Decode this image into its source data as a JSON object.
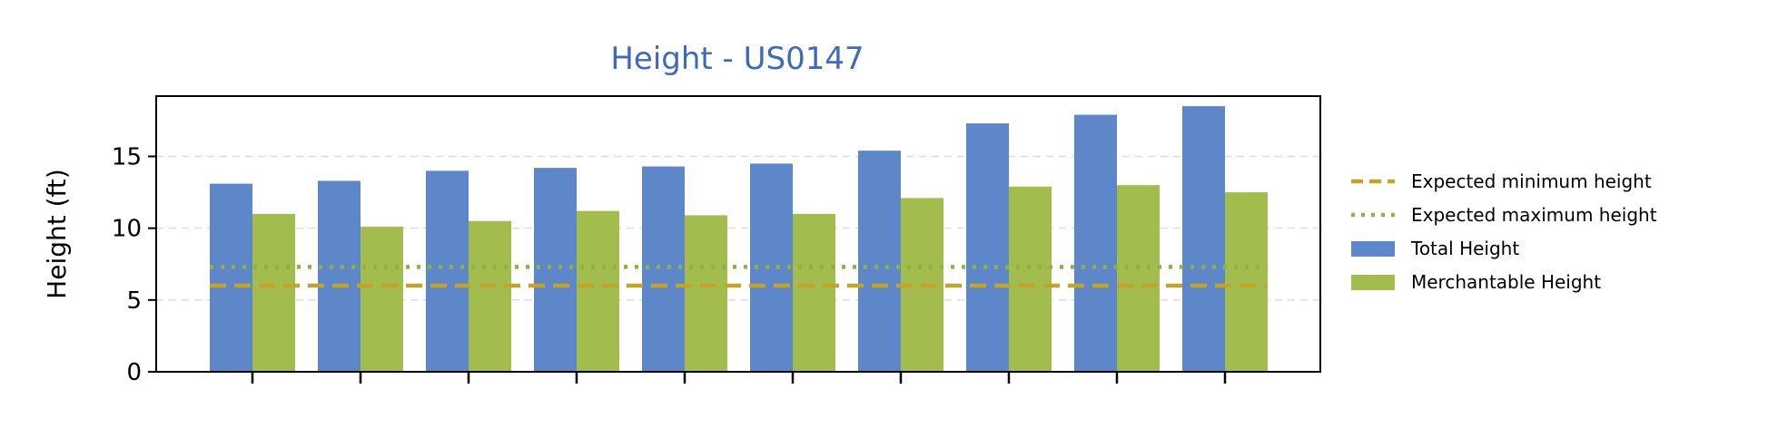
{
  "chart_data": {
    "type": "bar",
    "title": "Height - US0147",
    "ylabel": "Height (ft)",
    "xlabel": "",
    "ylim": [
      0,
      19.2
    ],
    "yticks": [
      0,
      5,
      10,
      15
    ],
    "grid": "y-dashed",
    "legend_placement": "right",
    "categories": [
      "",
      "",
      "",
      "",
      "",
      "",
      "",
      "",
      "",
      ""
    ],
    "series": [
      {
        "name": "Total Height",
        "color": "#5e87c9",
        "values": [
          13.1,
          13.3,
          14.0,
          14.2,
          14.3,
          14.5,
          15.4,
          17.3,
          17.9,
          18.5
        ]
      },
      {
        "name": "Merchantable Height",
        "color": "#a3bc4e",
        "values": [
          11.0,
          10.1,
          10.5,
          11.2,
          10.9,
          11.0,
          12.1,
          12.9,
          13.0,
          12.5
        ]
      }
    ],
    "reference_lines": [
      {
        "name": "Expected minimum height",
        "value": 6.0,
        "style": "dashed",
        "color": "#c2a42a"
      },
      {
        "name": "Expected maximum height",
        "value": 7.3,
        "style": "dotted",
        "color": "#8fb33c"
      }
    ],
    "title_color": "#3f6ab8"
  }
}
